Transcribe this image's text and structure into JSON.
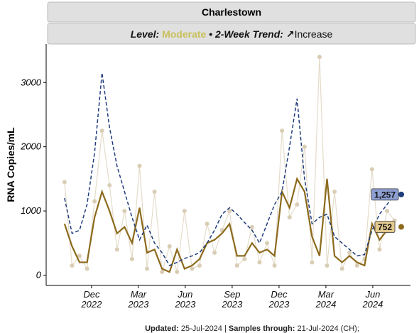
{
  "chart_data": {
    "type": "line",
    "title": "Charlestown",
    "subtitle_parts": [
      "Level:",
      "Moderate",
      "•",
      "2-Week Trend:",
      "↗",
      "Increase"
    ],
    "y_label": "RNA Copies/mL",
    "footer_parts": [
      "Updated:",
      "25-Jul-2024 |",
      "Samples through:",
      "21-Jul-2024 (CH);"
    ],
    "level_color": "#c9c05a",
    "x": [
      2022.773,
      2022.813,
      2022.853,
      2022.893,
      2022.933,
      2022.973,
      2023.013,
      2023.053,
      2023.093,
      2023.133,
      2023.173,
      2023.213,
      2023.253,
      2023.293,
      2023.333,
      2023.373,
      2023.413,
      2023.453,
      2023.493,
      2023.533,
      2023.573,
      2023.613,
      2023.653,
      2023.693,
      2023.733,
      2023.773,
      2023.813,
      2023.853,
      2023.893,
      2023.933,
      2023.973,
      2024.013,
      2024.053,
      2024.093,
      2024.133,
      2024.173,
      2024.213,
      2024.253,
      2024.293,
      2024.333,
      2024.373,
      2024.413,
      2024.453,
      2024.493,
      2024.533
    ],
    "series": [
      {
        "name": "Samples",
        "style": "points",
        "color": "#d9cdb4",
        "values": [
          1450,
          150,
          300,
          100,
          1150,
          2250,
          1400,
          400,
          1000,
          250,
          1700,
          100,
          1300,
          50,
          450,
          50,
          1000,
          100,
          150,
          800,
          350,
          700,
          1000,
          150,
          250,
          750,
          200,
          500,
          150,
          2250,
          900,
          1100,
          2000,
          200,
          3400,
          150,
          1300,
          100,
          350,
          150,
          250,
          1650,
          400,
          1000,
          850
        ]
      },
      {
        "name": "Smoothed",
        "style": "solid",
        "color": "#8c6a1c",
        "values": [
          800,
          450,
          200,
          200,
          900,
          1300,
          1000,
          650,
          750,
          500,
          1050,
          350,
          400,
          100,
          50,
          400,
          100,
          150,
          250,
          500,
          550,
          650,
          800,
          300,
          300,
          500,
          350,
          400,
          300,
          1300,
          1050,
          1500,
          1300,
          600,
          300,
          1500,
          300,
          200,
          300,
          200,
          150,
          800,
          550,
          700,
          752
        ],
        "value_labels": [
          null,
          null,
          null,
          null,
          null,
          null,
          null,
          null,
          null,
          null,
          null,
          null,
          null,
          null,
          null,
          null,
          null,
          null,
          null,
          null,
          null,
          null,
          null,
          null,
          null,
          null,
          null,
          null,
          null,
          null,
          null,
          null,
          null,
          null,
          null,
          null,
          null,
          null,
          null,
          null,
          null,
          null,
          null,
          null,
          "752"
        ],
        "label_fill": "#e3c98e"
      },
      {
        "name": "Trend",
        "style": "dashed",
        "color": "#1f3c7c",
        "values": [
          1200,
          650,
          700,
          1100,
          1900,
          3150,
          2300,
          1700,
          1300,
          900,
          550,
          780,
          500,
          350,
          150,
          200,
          260,
          300,
          350,
          500,
          700,
          950,
          1050,
          950,
          820,
          700,
          500,
          800,
          1100,
          1300,
          2000,
          2750,
          1500,
          800,
          900,
          950,
          600,
          500,
          400,
          300,
          320,
          700,
          950,
          1100,
          1257
        ],
        "value_labels": [
          null,
          null,
          null,
          null,
          null,
          null,
          null,
          null,
          null,
          null,
          null,
          null,
          null,
          null,
          null,
          null,
          null,
          null,
          null,
          null,
          null,
          null,
          null,
          null,
          null,
          null,
          null,
          null,
          null,
          null,
          null,
          null,
          null,
          null,
          null,
          null,
          null,
          null,
          null,
          null,
          null,
          null,
          null,
          null,
          "1,257"
        ],
        "label_fill": "#8e9fd2"
      }
    ],
    "xlim": [
      2022.675,
      2024.618
    ],
    "xticks": [
      {
        "value": 2022.917,
        "label": "Dec 2022"
      },
      {
        "value": 2023.167,
        "label": "Mar 2023"
      },
      {
        "value": 2023.417,
        "label": "Jun 2023"
      },
      {
        "value": 2023.667,
        "label": "Sep 2023"
      },
      {
        "value": 2023.917,
        "label": "Dec 2023"
      },
      {
        "value": 2024.167,
        "label": "Mar 2024"
      },
      {
        "value": 2024.417,
        "label": "Jun 2024"
      }
    ],
    "ylim": [
      -160,
      3600
    ],
    "yticks": [
      0,
      1000,
      2000,
      3000
    ],
    "grid": false
  }
}
